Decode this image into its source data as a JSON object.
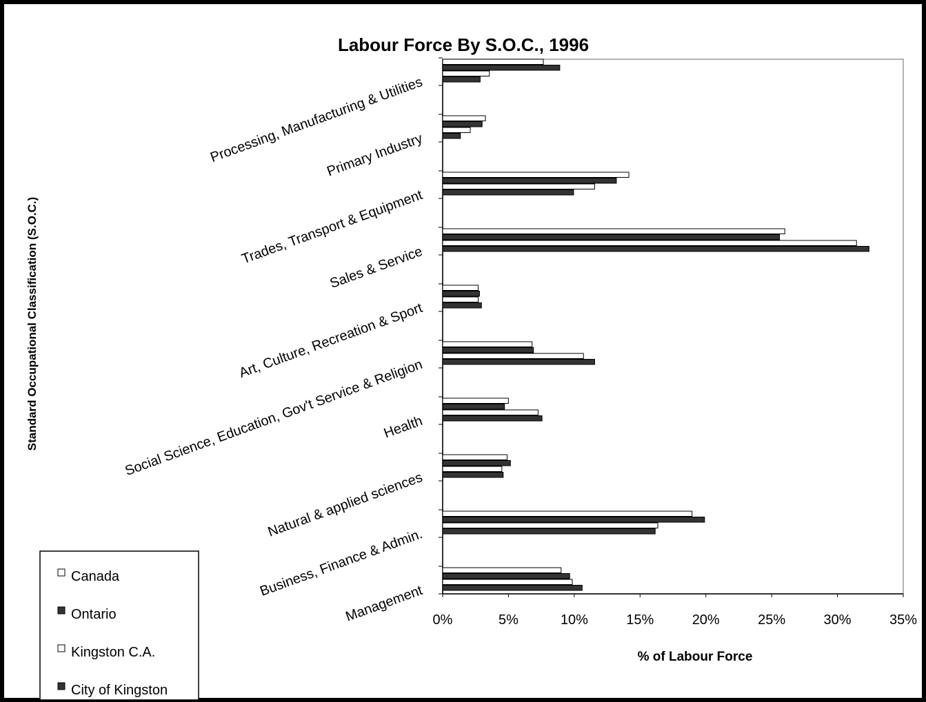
{
  "chart_data": {
    "type": "bar",
    "orientation": "horizontal",
    "title": "Labour Force By S.O.C., 1996",
    "x_label": "% of Labour Force",
    "y_label": "Standard Occupational Classification (S.O.C.)",
    "categories": [
      "Management",
      "Business, Finance & Admin.",
      "Natural & applied sciences",
      "Health",
      "Social Science, Education, Gov't Service & Religion",
      "Art, Culture, Recreation & Sport",
      "Sales & Service",
      "Trades, Transport & Equipment",
      "Primary Industry",
      "Processing, Manufacturing & Utilities"
    ],
    "series": [
      {
        "name": "Canada",
        "color": "#ffffff",
        "values": [
          9.0,
          18.95,
          4.9,
          5.0,
          6.8,
          2.7,
          26.0,
          14.15,
          3.25,
          7.65
        ]
      },
      {
        "name": "Ontario",
        "color": "#333333",
        "values": [
          9.65,
          19.9,
          5.15,
          4.7,
          6.9,
          2.8,
          25.6,
          13.2,
          3.0,
          8.9
        ]
      },
      {
        "name": "Kingston C.A.",
        "color": "#ffffff",
        "values": [
          9.85,
          16.35,
          4.5,
          7.25,
          10.7,
          2.7,
          31.45,
          11.55,
          2.1,
          3.55
        ]
      },
      {
        "name": "City of Kingston",
        "color": "#333333",
        "values": [
          10.6,
          16.15,
          4.6,
          7.55,
          11.55,
          2.95,
          32.4,
          9.95,
          1.35,
          2.85
        ]
      }
    ],
    "xlim": [
      0,
      35
    ],
    "xticks": [
      {
        "value": 0,
        "label": "0%"
      },
      {
        "value": 5,
        "label": "5%"
      },
      {
        "value": 10,
        "label": "10%"
      },
      {
        "value": 15,
        "label": "15%"
      },
      {
        "value": 20,
        "label": "20%"
      },
      {
        "value": 25,
        "label": "25%"
      },
      {
        "value": 30,
        "label": "30%"
      },
      {
        "value": 35,
        "label": "35%"
      }
    ],
    "grid": false,
    "legend": "bottom-left"
  }
}
